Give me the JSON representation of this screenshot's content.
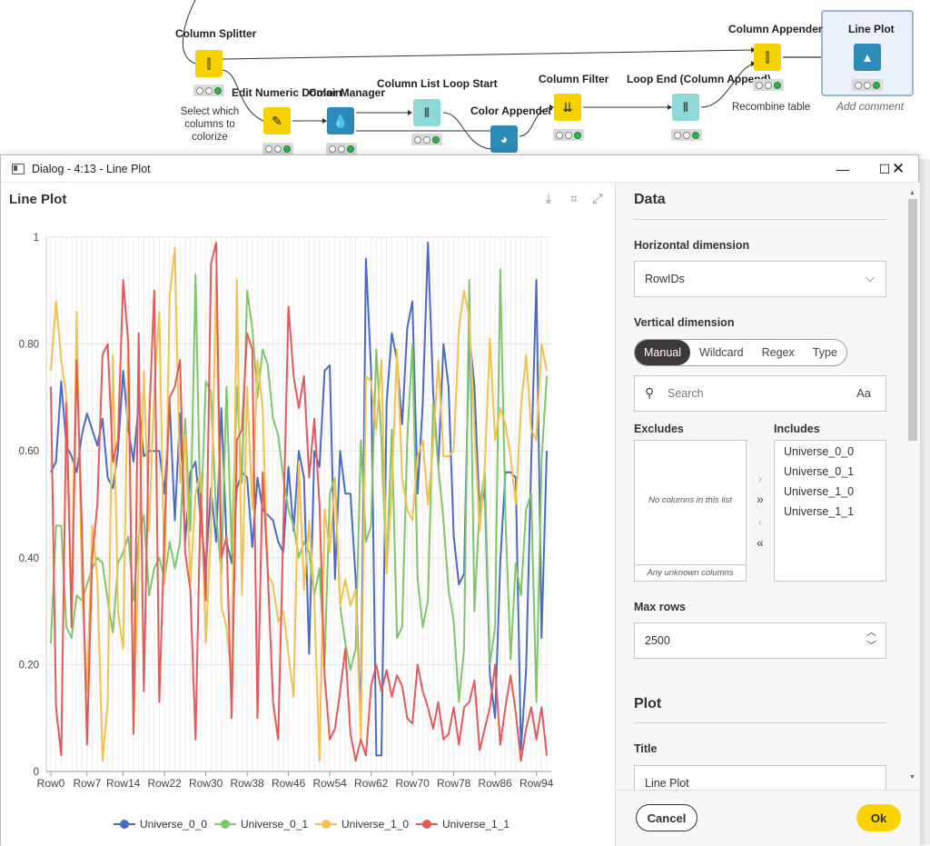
{
  "workflow": {
    "nodes": [
      {
        "id": "column-splitter",
        "label": "Column Splitter",
        "color": "#f5d200"
      },
      {
        "id": "edit-numeric-domain",
        "label": "Edit Numeric Domain",
        "color": "#f5d200"
      },
      {
        "id": "color-manager",
        "label": "Color Manager",
        "color": "#2a8ab8"
      },
      {
        "id": "column-list-loop-start",
        "label": "Column List Loop Start",
        "color": "#8fd8d8"
      },
      {
        "id": "color-appender",
        "label": "Color Appender",
        "color": "#2a8ab8"
      },
      {
        "id": "column-filter",
        "label": "Column Filter",
        "color": "#f5d200"
      },
      {
        "id": "loop-end",
        "label": "Loop End (Column Append)",
        "color": "#8fd8d8"
      },
      {
        "id": "column-appender",
        "label": "Column Appender",
        "color": "#f5d200"
      },
      {
        "id": "line-plot-node",
        "label": "Line Plot",
        "color": "#2a8ab8"
      }
    ],
    "comment_colorize": "Select which\ncolumns to colorize",
    "comment_recombine": "Recombine table",
    "add_comment": "Add comment"
  },
  "dialog": {
    "title": "Dialog - 4:13 - Line Plot",
    "plot_title": "Line Plot"
  },
  "settings": {
    "data_heading": "Data",
    "horizontal_label": "Horizontal dimension",
    "horizontal_value": "RowIDs",
    "vertical_label": "Vertical dimension",
    "modes": [
      "Manual",
      "Wildcard",
      "Regex",
      "Type"
    ],
    "active_mode": "Manual",
    "search_placeholder": "Search",
    "case_toggle": "Aa",
    "excludes_label": "Excludes",
    "includes_label": "Includes",
    "excludes_empty": "No columns in this list",
    "unknown_columns": "Any unknown columns",
    "includes": [
      "Universe_0_0",
      "Universe_0_1",
      "Universe_1_0",
      "Universe_1_1"
    ],
    "max_rows_label": "Max rows",
    "max_rows_value": "2500",
    "plot_heading": "Plot",
    "title_label": "Title",
    "title_value": "Line Plot",
    "cancel": "Cancel",
    "ok": "Ok"
  },
  "chart_data": {
    "type": "line",
    "title": "Line Plot",
    "xlabel": "",
    "ylabel": "",
    "ylim": [
      0,
      1
    ],
    "yticks": [
      0,
      0.2,
      0.4,
      0.6,
      0.8,
      1
    ],
    "ytick_labels": [
      "0",
      "0.20",
      "0.40",
      "0.60",
      "0.80",
      "1"
    ],
    "xtick_labels": [
      "Row0",
      "Row7",
      "Row14",
      "Row22",
      "Row30",
      "Row38",
      "Row46",
      "Row54",
      "Row62",
      "Row70",
      "Row78",
      "Row86",
      "Row94"
    ],
    "xtick_indices": [
      0,
      7,
      14,
      22,
      30,
      38,
      46,
      54,
      62,
      70,
      78,
      86,
      94
    ],
    "grid": true,
    "legend_position": "bottom",
    "series": [
      {
        "name": "Universe_0_0",
        "color": "#4a6bc4",
        "values": [
          0.56,
          0.58,
          0.73,
          0.61,
          0.59,
          0.56,
          0.63,
          0.67,
          0.64,
          0.61,
          0.66,
          0.55,
          0.53,
          0.6,
          0.75,
          0.64,
          0.58,
          0.69,
          0.59,
          0.6,
          0.6,
          0.6,
          0.52,
          0.69,
          0.47,
          0.67,
          0.43,
          0.56,
          0.58,
          0.47,
          0.38,
          0.53,
          0.43,
          0.68,
          0.43,
          0.39,
          0.53,
          0.56,
          0.55,
          0.42,
          0.55,
          0.49,
          0.48,
          0.47,
          0.43,
          0.41,
          0.57,
          0.45,
          0.6,
          0.55,
          0.22,
          0.6,
          0.57,
          0.75,
          0.76,
          0.36,
          0.6,
          0.52,
          0.52,
          0.36,
          0.09,
          0.96,
          0.75,
          0.03,
          0.03,
          0.69,
          0.82,
          0.77,
          0.65,
          0.83,
          0.88,
          0.52,
          0.69,
          0.99,
          0.71,
          0.57,
          0.8,
          0.72,
          0.44,
          0.35,
          0.37,
          0.82,
          0.72,
          0.48,
          0.53,
          0.18,
          0.1,
          0.39,
          0.56,
          0.56,
          0.55,
          0.04,
          0.19,
          0.58,
          0.92,
          0.25,
          0.6
        ]
      },
      {
        "name": "Universe_0_1",
        "color": "#7fc66b",
        "values": [
          0.24,
          0.46,
          0.46,
          0.27,
          0.25,
          0.33,
          0.32,
          0.35,
          0.38,
          0.4,
          0.39,
          0.32,
          0.26,
          0.39,
          0.41,
          0.44,
          0.32,
          0.44,
          0.48,
          0.33,
          0.38,
          0.4,
          0.36,
          0.43,
          0.38,
          0.43,
          0.66,
          0.45,
          0.93,
          0.45,
          0.73,
          0.71,
          0.48,
          0.37,
          0.72,
          0.41,
          0.72,
          0.54,
          0.9,
          0.83,
          0.7,
          0.79,
          0.76,
          0.66,
          0.63,
          0.55,
          0.49,
          0.46,
          0.4,
          0.43,
          0.41,
          0.33,
          0.38,
          0.2,
          0.52,
          0.55,
          0.31,
          0.24,
          0.19,
          0.23,
          0.62,
          0.43,
          0.46,
          0.79,
          0.62,
          0.37,
          0.64,
          0.25,
          0.27,
          0.62,
          0.8,
          0.36,
          0.27,
          0.32,
          0.69,
          0.57,
          0.47,
          0.34,
          0.28,
          0.13,
          0.23,
          0.92,
          0.3,
          0.5,
          0.56,
          0.2,
          0.27,
          0.94,
          0.48,
          0.21,
          0.39,
          0.33,
          0.49,
          0.52,
          0.13,
          0.58,
          0.74
        ]
      },
      {
        "name": "Universe_1_0",
        "color": "#f2c14e",
        "values": [
          0.75,
          0.88,
          0.77,
          0.7,
          0.31,
          0.86,
          0.35,
          0.15,
          0.46,
          0.36,
          0.02,
          0.13,
          0.78,
          0.3,
          0.23,
          0.81,
          0.08,
          0.4,
          0.75,
          0.45,
          0.71,
          0.86,
          0.35,
          0.89,
          0.98,
          0.54,
          0.63,
          0.35,
          0.52,
          0.56,
          0.24,
          0.46,
          0.93,
          0.31,
          0.27,
          0.17,
          0.92,
          0.33,
          0.72,
          0.49,
          0.77,
          0.68,
          0.37,
          0.35,
          0.28,
          0.3,
          0.22,
          0.14,
          0.58,
          0.34,
          0.47,
          0.32,
          0.02,
          0.49,
          0.41,
          0.55,
          0.31,
          0.36,
          0.31,
          0.34,
          0.06,
          0.74,
          0.73,
          0.64,
          0.77,
          0.37,
          0.53,
          0.79,
          0.55,
          0.49,
          0.47,
          0.59,
          0.62,
          0.5,
          0.61,
          0.77,
          0.59,
          0.59,
          0.6,
          0.83,
          0.9,
          0.85,
          0.64,
          0.45,
          0.57,
          0.81,
          0.62,
          0.68,
          0.65,
          0.59,
          0.5,
          0.68,
          0.78,
          0.64,
          0.62,
          0.8,
          0.75
        ]
      },
      {
        "name": "Universe_1_1",
        "color": "#e35a5a",
        "values": [
          0.72,
          0.12,
          0.03,
          0.69,
          0.27,
          0.77,
          0.46,
          0.05,
          0.4,
          0.5,
          0.78,
          0.8,
          0.58,
          0.62,
          0.92,
          0.8,
          0.07,
          0.82,
          0.15,
          0.65,
          0.9,
          0.13,
          0.45,
          0.7,
          0.72,
          0.77,
          0.41,
          0.34,
          0.06,
          0.52,
          0.32,
          0.95,
          0.99,
          0.4,
          0.44,
          0.1,
          0.62,
          0.64,
          0.82,
          0.79,
          0.1,
          0.56,
          0.37,
          0.13,
          0.06,
          0.45,
          0.87,
          0.74,
          0.68,
          0.74,
          0.55,
          0.66,
          0.5,
          0.18,
          0.06,
          0.08,
          0.15,
          0.23,
          0.07,
          0.02,
          0.06,
          0.03,
          0.16,
          0.2,
          0.15,
          0.19,
          0.14,
          0.18,
          0.16,
          0.1,
          0.09,
          0.2,
          0.15,
          0.12,
          0.08,
          0.13,
          0.06,
          0.07,
          0.12,
          0.05,
          0.12,
          0.13,
          0.17,
          0.04,
          0.08,
          0.12,
          0.2,
          0.05,
          0.12,
          0.18,
          0.11,
          0.02,
          0.08,
          0.12,
          0.06,
          0.12,
          0.03
        ]
      }
    ]
  }
}
